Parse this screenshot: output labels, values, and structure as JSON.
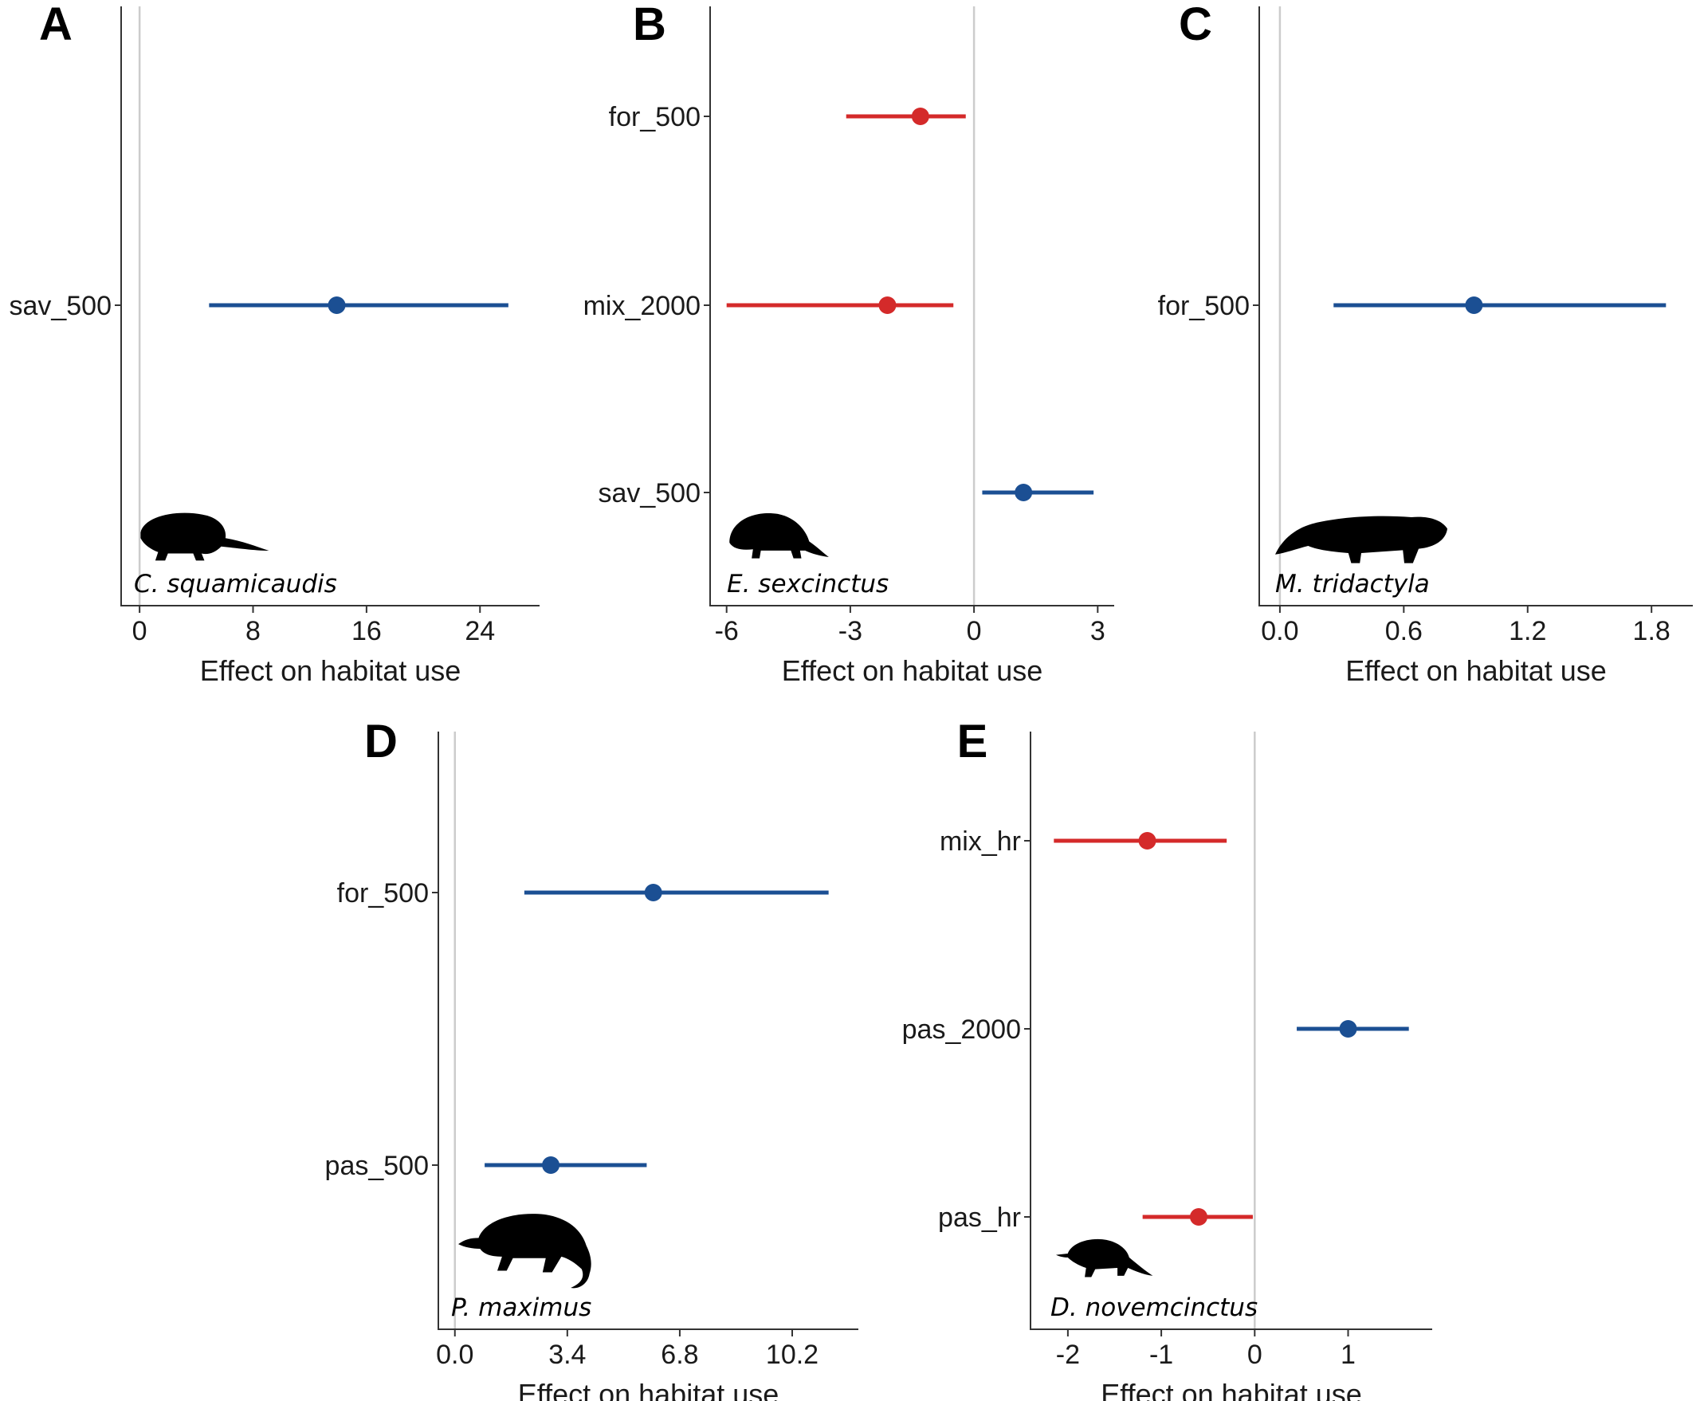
{
  "colors": {
    "positive": "#1b4f93",
    "negative": "#d42a2a",
    "zero_line": "#cccccc",
    "axis": "#333333"
  },
  "chart_data": [
    {
      "panel": "A",
      "type": "forest",
      "species": "C. squamicaudis",
      "silhouette": "armadillo-long-tail-icon",
      "xlabel": "Effect on habitat use",
      "xlim": [
        -1.3,
        28.2
      ],
      "xticks": [
        0,
        8,
        16,
        24
      ],
      "xtick_labels": [
        "0",
        "8",
        "16",
        "24"
      ],
      "categories": [
        "sav_500"
      ],
      "estimates": [
        {
          "label": "sav_500",
          "est": 13.9,
          "lo": 4.9,
          "hi": 26.0,
          "sign": "positive"
        }
      ]
    },
    {
      "panel": "B",
      "type": "forest",
      "species": "E. sexcinctus",
      "silhouette": "armadillo-icon",
      "xlabel": "Effect on habitat use",
      "xlim": [
        -6.4,
        3.4
      ],
      "xticks": [
        -6,
        -3,
        0,
        3
      ],
      "xtick_labels": [
        "-6",
        "-3",
        "0",
        "3"
      ],
      "categories": [
        "for_500",
        "mix_2000",
        "sav_500"
      ],
      "estimates": [
        {
          "label": "for_500",
          "est": -1.3,
          "lo": -3.1,
          "hi": -0.2,
          "sign": "negative"
        },
        {
          "label": "mix_2000",
          "est": -2.1,
          "lo": -6.0,
          "hi": -0.5,
          "sign": "negative"
        },
        {
          "label": "sav_500",
          "est": 1.2,
          "lo": 0.2,
          "hi": 2.9,
          "sign": "positive"
        }
      ]
    },
    {
      "panel": "C",
      "type": "forest",
      "species": "M. tridactyla",
      "silhouette": "anteater-icon",
      "xlabel": "Effect on habitat use",
      "xlim": [
        -0.1,
        2.0
      ],
      "xticks": [
        0.0,
        0.6,
        1.2,
        1.8
      ],
      "xtick_labels": [
        "0.0",
        "0.6",
        "1.2",
        "1.8"
      ],
      "categories": [
        "for_500"
      ],
      "estimates": [
        {
          "label": "for_500",
          "est": 0.94,
          "lo": 0.26,
          "hi": 1.87,
          "sign": "positive"
        }
      ]
    },
    {
      "panel": "D",
      "type": "forest",
      "species": "P. maximus",
      "silhouette": "giant-armadillo-icon",
      "xlabel": "Effect on habitat use",
      "xlim": [
        -0.5,
        12.2
      ],
      "xticks": [
        0.0,
        3.4,
        6.8,
        10.2
      ],
      "xtick_labels": [
        "0.0",
        "3.4",
        "6.8",
        "10.2"
      ],
      "categories": [
        "for_500",
        "pas_500"
      ],
      "estimates": [
        {
          "label": "for_500",
          "est": 6.0,
          "lo": 2.1,
          "hi": 11.3,
          "sign": "positive"
        },
        {
          "label": "pas_500",
          "est": 2.9,
          "lo": 0.9,
          "hi": 5.8,
          "sign": "positive"
        }
      ]
    },
    {
      "panel": "E",
      "type": "forest",
      "species": "D. novemcinctus",
      "silhouette": "nine-banded-armadillo-icon",
      "xlabel": "Effect on habitat use",
      "xlim": [
        -2.4,
        1.9
      ],
      "xticks": [
        -2,
        -1,
        0,
        1
      ],
      "xtick_labels": [
        "-2",
        "-1",
        "0",
        "1"
      ],
      "categories": [
        "mix_hr",
        "pas_2000",
        "pas_hr"
      ],
      "estimates": [
        {
          "label": "mix_hr",
          "est": -1.15,
          "lo": -2.15,
          "hi": -0.3,
          "sign": "negative"
        },
        {
          "label": "pas_2000",
          "est": 1.0,
          "lo": 0.45,
          "hi": 1.65,
          "sign": "positive"
        },
        {
          "label": "pas_hr",
          "est": -0.6,
          "lo": -1.2,
          "hi": -0.02,
          "sign": "negative"
        }
      ]
    }
  ]
}
